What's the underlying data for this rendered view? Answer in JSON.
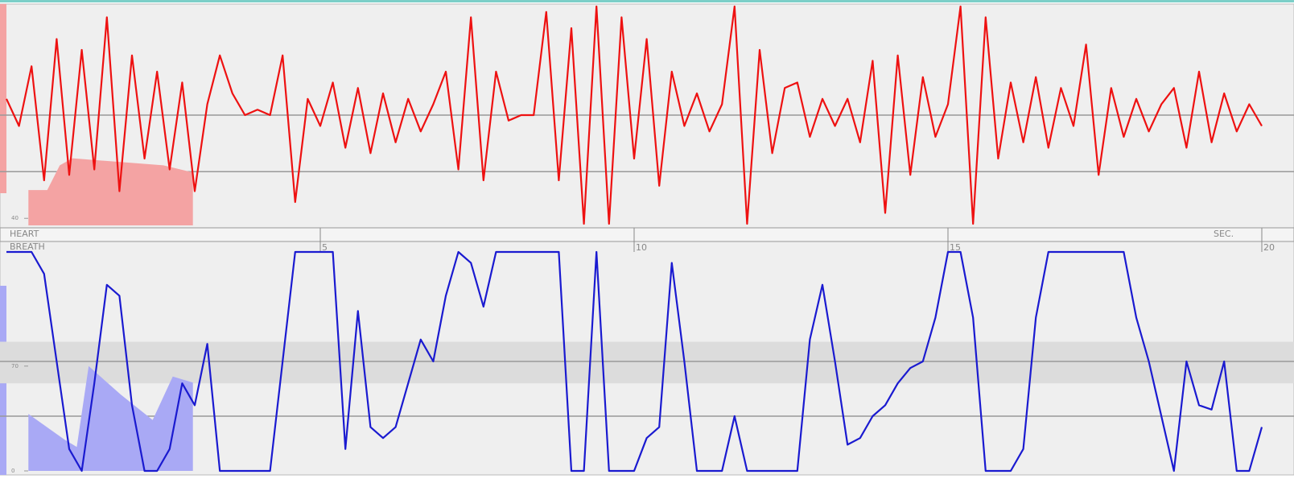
{
  "chart_data": [
    {
      "type": "line",
      "title": "HEART",
      "color": "#ee1111",
      "xlim": [
        0,
        20
      ],
      "ylim": [
        -100,
        100
      ],
      "xticks": [
        5,
        10,
        15,
        20
      ],
      "xlabel": "SEC.",
      "ref_lines": [
        0,
        -52
      ],
      "x": [
        0,
        0.2,
        0.4,
        0.6,
        0.8,
        1,
        1.2,
        1.4,
        1.6,
        1.8,
        2,
        2.2,
        2.4,
        2.6,
        2.8,
        3,
        3.2,
        3.4,
        3.6,
        3.8,
        4,
        4.2,
        4.4,
        4.6,
        4.8,
        5,
        5.2,
        5.4,
        5.6,
        5.8,
        6,
        6.2,
        6.4,
        6.6,
        6.8,
        7,
        7.2,
        7.4,
        7.6,
        7.8,
        8,
        8.2,
        8.4,
        8.6,
        8.8,
        9,
        9.2,
        9.4,
        9.6,
        9.8,
        10,
        10.2,
        10.4,
        10.6,
        10.8,
        11,
        11.2,
        11.4,
        11.6,
        11.8,
        12,
        12.2,
        12.4,
        12.6,
        12.8,
        13,
        13.2,
        13.4,
        13.6,
        13.8,
        14,
        14.2,
        14.4,
        14.6,
        14.8,
        15,
        15.2,
        15.4,
        15.6,
        15.8,
        16,
        16.2,
        16.4,
        16.6,
        16.8,
        17,
        17.2,
        17.4,
        17.6,
        17.8,
        18,
        18.2,
        18.4,
        18.6,
        18.8,
        19,
        19.2,
        19.4,
        19.6,
        19.8,
        20
      ],
      "values": [
        15,
        -10,
        45,
        -60,
        70,
        -55,
        60,
        -50,
        90,
        -70,
        55,
        -40,
        40,
        -50,
        30,
        -70,
        10,
        55,
        20,
        0,
        5,
        0,
        55,
        -80,
        15,
        -10,
        30,
        -30,
        25,
        -35,
        20,
        -25,
        15,
        -15,
        10,
        40,
        -50,
        90,
        -60,
        40,
        -5,
        0,
        0,
        95,
        -60,
        80,
        -100,
        100,
        -100,
        90,
        -40,
        70,
        -65,
        40,
        -10,
        20,
        -15,
        10,
        100,
        -100,
        60,
        -35,
        25,
        30,
        -20,
        15,
        -10,
        15,
        -25,
        50,
        -90,
        55,
        -55,
        35,
        -20,
        10,
        100,
        -100,
        90,
        -40,
        30,
        -25,
        35,
        -30,
        25,
        -10,
        65,
        -55,
        25,
        -20,
        15,
        -15,
        10,
        25,
        -30,
        40,
        -25,
        20,
        -15,
        10,
        -10
      ],
      "inset": {
        "color": "#f4a3a3",
        "ylim": [
          38,
          100
        ],
        "yticks": [
          40
        ],
        "x": [
          0.35,
          0.65,
          0.85,
          1.05,
          2.5,
          2.97
        ],
        "values": [
          48,
          48,
          55,
          57,
          55,
          53
        ]
      }
    },
    {
      "type": "line",
      "title": "BREATH",
      "color": "#1a1ad0",
      "xlim": [
        0,
        20
      ],
      "ylim": [
        0,
        100
      ],
      "ref_lines": [
        50,
        25
      ],
      "band": [
        40,
        59
      ],
      "x": [
        0,
        0.2,
        0.4,
        0.6,
        0.8,
        1,
        1.2,
        1.4,
        1.6,
        1.8,
        2,
        2.2,
        2.4,
        2.6,
        2.8,
        3,
        3.2,
        3.4,
        3.6,
        3.8,
        4,
        4.2,
        4.4,
        4.6,
        4.8,
        5,
        5.2,
        5.4,
        5.6,
        5.8,
        6,
        6.2,
        6.4,
        6.6,
        6.8,
        7,
        7.2,
        7.4,
        7.6,
        7.8,
        8,
        8.2,
        8.4,
        8.6,
        8.8,
        9,
        9.2,
        9.4,
        9.6,
        9.8,
        10,
        10.2,
        10.4,
        10.6,
        10.8,
        11,
        11.2,
        11.4,
        11.6,
        11.8,
        12,
        12.2,
        12.4,
        12.6,
        12.8,
        13,
        13.2,
        13.4,
        13.6,
        13.8,
        14,
        14.2,
        14.4,
        14.6,
        14.8,
        15,
        15.2,
        15.4,
        15.6,
        15.8,
        16,
        16.2,
        16.4,
        16.6,
        16.8,
        17,
        17.2,
        17.4,
        17.6,
        17.8,
        18,
        18.2,
        18.4,
        18.6,
        18.8,
        19,
        19.2,
        19.4,
        19.6,
        19.8,
        20
      ],
      "values": [
        100,
        100,
        100,
        90,
        50,
        10,
        0,
        40,
        85,
        80,
        30,
        0,
        0,
        10,
        40,
        30,
        58,
        0,
        0,
        0,
        0,
        0,
        50,
        100,
        100,
        100,
        100,
        10,
        73,
        20,
        15,
        20,
        40,
        60,
        50,
        80,
        100,
        95,
        75,
        100,
        100,
        100,
        100,
        100,
        100,
        0,
        0,
        100,
        0,
        0,
        0,
        15,
        20,
        95,
        50,
        0,
        0,
        0,
        25,
        0,
        0,
        0,
        0,
        0,
        60,
        85,
        50,
        12,
        15,
        25,
        30,
        40,
        47,
        50,
        70,
        100,
        100,
        70,
        0,
        0,
        0,
        10,
        70,
        100,
        100,
        100,
        100,
        100,
        100,
        100,
        70,
        50,
        25,
        0,
        50,
        30,
        28,
        50,
        0,
        0,
        20
      ],
      "inset": {
        "color": "#a9a9f5",
        "ylim": [
          0,
          100
        ],
        "yticks": [
          0,
          70
        ],
        "x": [
          0.35,
          0.92,
          1.12,
          1.31,
          1.82,
          2.33,
          2.65,
          2.97
        ],
        "values": [
          38,
          21,
          16,
          70,
          51,
          34,
          63,
          59
        ]
      }
    }
  ]
}
